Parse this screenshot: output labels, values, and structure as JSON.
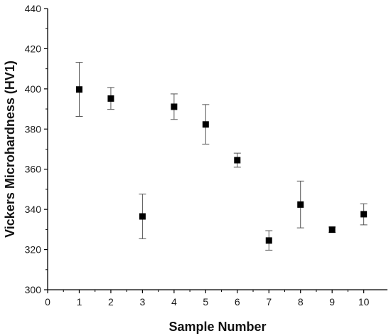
{
  "chart_data": {
    "type": "scatter",
    "title": "",
    "xlabel": "Sample Number",
    "ylabel": "Vickers Microhardness (HV1)",
    "xlim": [
      0,
      10.75
    ],
    "ylim": [
      300,
      440
    ],
    "x_ticks": [
      0,
      1,
      2,
      3,
      4,
      5,
      6,
      7,
      8,
      9,
      10
    ],
    "y_ticks": [
      300,
      320,
      340,
      360,
      380,
      400,
      420,
      440
    ],
    "grid": false,
    "legend": "none",
    "marker": "square",
    "marker_color": "#000000",
    "errorbar_color": "#555555",
    "series": [
      {
        "x": [
          1,
          2,
          3,
          4,
          5,
          6,
          7,
          8,
          9,
          10
        ],
        "y": [
          399.7,
          395.2,
          336.5,
          391.1,
          382.3,
          364.5,
          324.5,
          342.4,
          329.9,
          337.6
        ],
        "yerr_high": [
          413.2,
          400.7,
          347.6,
          397.5,
          392.2,
          368.0,
          329.4,
          354.1,
          331.2,
          342.8
        ],
        "yerr_low": [
          386.3,
          389.8,
          325.4,
          384.8,
          372.5,
          361.0,
          319.7,
          330.8,
          328.6,
          332.3
        ]
      }
    ]
  }
}
